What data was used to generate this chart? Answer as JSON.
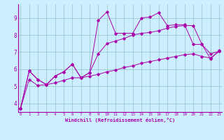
{
  "xlabel": "Windchill (Refroidissement éolien,°C)",
  "bg_color": "#cceeff",
  "line_color": "#aa00aa",
  "grid_color": "#99cccc",
  "x_data": [
    0,
    1,
    2,
    3,
    4,
    5,
    6,
    7,
    8,
    9,
    10,
    11,
    12,
    13,
    14,
    15,
    16,
    17,
    18,
    19,
    20,
    21,
    22,
    23
  ],
  "y_top": [
    3.7,
    5.9,
    5.4,
    5.1,
    5.6,
    5.85,
    6.3,
    5.5,
    5.8,
    8.85,
    9.35,
    8.1,
    8.1,
    8.1,
    9.0,
    9.05,
    9.3,
    8.55,
    8.6,
    8.6,
    7.45,
    7.45,
    6.6,
    7.1
  ],
  "y_mid": [
    3.7,
    5.9,
    5.4,
    5.1,
    5.6,
    5.85,
    6.3,
    5.5,
    5.8,
    6.9,
    7.5,
    7.65,
    7.8,
    8.0,
    8.1,
    8.15,
    8.25,
    8.4,
    8.5,
    8.55,
    8.55,
    7.45,
    6.9,
    7.05
  ],
  "y_bot": [
    3.7,
    5.4,
    5.05,
    5.1,
    5.2,
    5.35,
    5.5,
    5.5,
    5.6,
    5.7,
    5.85,
    5.95,
    6.1,
    6.2,
    6.35,
    6.45,
    6.55,
    6.65,
    6.75,
    6.85,
    6.9,
    6.75,
    6.65,
    7.05
  ],
  "ylim": [
    3.5,
    9.8
  ],
  "xlim_min": -0.3,
  "xlim_max": 23.3,
  "yticks": [
    4,
    5,
    6,
    7,
    8,
    9
  ],
  "xticks": [
    0,
    1,
    2,
    3,
    4,
    5,
    6,
    7,
    8,
    9,
    10,
    11,
    12,
    13,
    14,
    15,
    16,
    17,
    18,
    19,
    20,
    21,
    22,
    23
  ]
}
